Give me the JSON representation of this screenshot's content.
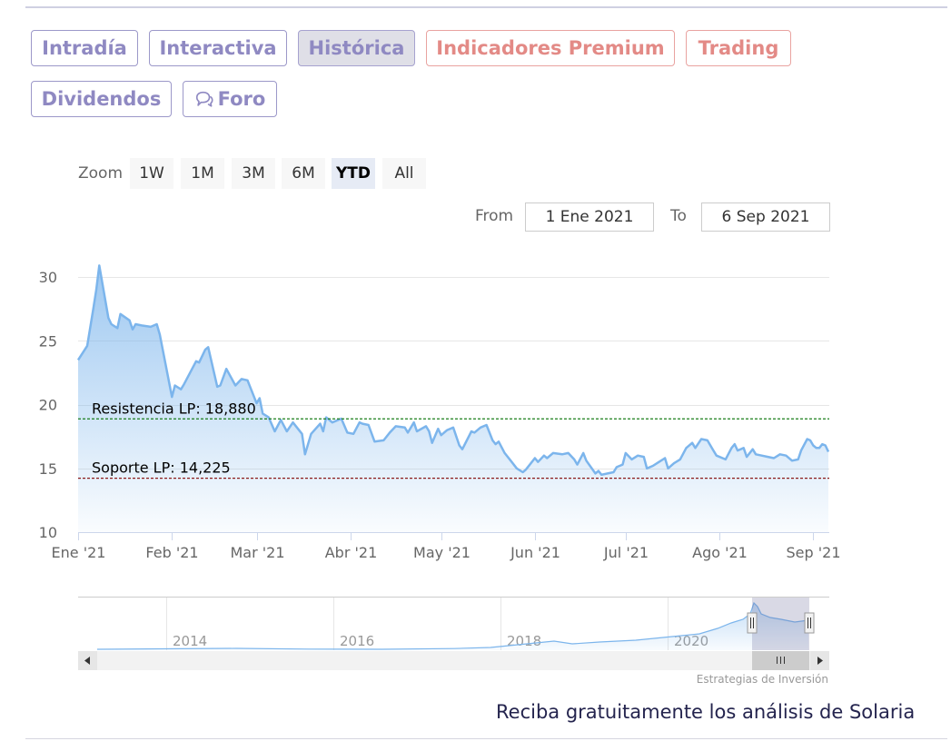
{
  "tabs": [
    {
      "label": "Intradía",
      "style": "normal"
    },
    {
      "label": "Interactiva",
      "style": "normal"
    },
    {
      "label": "Histórica",
      "style": "active"
    },
    {
      "label": "Indicadores Premium",
      "style": "premium"
    },
    {
      "label": "Trading",
      "style": "premium"
    },
    {
      "label": "Dividendos",
      "style": "normal"
    },
    {
      "label": "Foro",
      "style": "normal",
      "icon": "speech-bubbles-icon"
    }
  ],
  "range_selector": {
    "zoom_label": "Zoom",
    "buttons": [
      "1W",
      "1M",
      "3M",
      "6M",
      "YTD",
      "All"
    ],
    "selected": "YTD",
    "from_label": "From",
    "from_value": "1 Ene 2021",
    "to_label": "To",
    "to_value": "6 Sep 2021"
  },
  "navigator": {
    "year_labels": [
      "2014",
      "2016",
      "2018",
      "2020"
    ],
    "scroll_left_icon": "arrow-left-icon",
    "scroll_right_icon": "arrow-right-icon",
    "grip_icon": "grip-icon"
  },
  "credit": "Estrategias de Inversión",
  "cta_text": "Reciba gratuitamente los análisis de Solaria",
  "colors": {
    "tab_text": "#8f89c2",
    "tab_premium": "#e38a86",
    "series_line": "#7cb5ec",
    "resistance": "#1a7d1a",
    "support": "#8b1a1a",
    "cta": "#24244e"
  },
  "chart_data": {
    "type": "area",
    "title": "",
    "xlabel": "",
    "ylabel": "",
    "x_ticks": [
      "Ene '21",
      "Feb '21",
      "Mar '21",
      "Abr '21",
      "May '21",
      "Jun '21",
      "Jul '21",
      "Ago '21",
      "Sep '21"
    ],
    "y_ticks": [
      10,
      15,
      20,
      25,
      30
    ],
    "ylim": [
      10,
      31.5
    ],
    "xlim": [
      "2021-01-01",
      "2021-09-06"
    ],
    "grid": true,
    "series": [
      {
        "values": [
          [
            "2021-01-01",
            23.5
          ],
          [
            "2021-01-04",
            24.6
          ],
          [
            "2021-01-06",
            27.5
          ],
          [
            "2021-01-07",
            29.0
          ],
          [
            "2021-01-08",
            30.9
          ],
          [
            "2021-01-11",
            26.8
          ],
          [
            "2021-01-12",
            26.3
          ],
          [
            "2021-01-14",
            26.0
          ],
          [
            "2021-01-15",
            27.1
          ],
          [
            "2021-01-18",
            26.6
          ],
          [
            "2021-01-19",
            25.9
          ],
          [
            "2021-01-20",
            26.3
          ],
          [
            "2021-01-22",
            26.2
          ],
          [
            "2021-01-25",
            26.1
          ],
          [
            "2021-01-27",
            26.3
          ],
          [
            "2021-01-28",
            25.5
          ],
          [
            "2021-02-01",
            20.6
          ],
          [
            "2021-02-02",
            21.5
          ],
          [
            "2021-02-04",
            21.2
          ],
          [
            "2021-02-05",
            21.6
          ],
          [
            "2021-02-09",
            23.4
          ],
          [
            "2021-02-10",
            23.3
          ],
          [
            "2021-02-12",
            24.3
          ],
          [
            "2021-02-13",
            24.5
          ],
          [
            "2021-02-16",
            21.4
          ],
          [
            "2021-02-17",
            21.5
          ],
          [
            "2021-02-19",
            22.8
          ],
          [
            "2021-02-22",
            21.5
          ],
          [
            "2021-02-24",
            22.0
          ],
          [
            "2021-02-26",
            21.9
          ],
          [
            "2021-03-01",
            20.1
          ],
          [
            "2021-03-02",
            20.5
          ],
          [
            "2021-03-03",
            19.3
          ],
          [
            "2021-03-05",
            19.0
          ],
          [
            "2021-03-07",
            17.9
          ],
          [
            "2021-03-09",
            18.8
          ],
          [
            "2021-03-11",
            17.9
          ],
          [
            "2021-03-13",
            18.6
          ],
          [
            "2021-03-16",
            17.7
          ],
          [
            "2021-03-17",
            16.1
          ],
          [
            "2021-03-19",
            17.7
          ],
          [
            "2021-03-22",
            18.5
          ],
          [
            "2021-03-23",
            17.9
          ],
          [
            "2021-03-24",
            19.0
          ],
          [
            "2021-03-26",
            18.6
          ],
          [
            "2021-03-29",
            18.9
          ],
          [
            "2021-03-31",
            17.8
          ],
          [
            "2021-04-02",
            17.7
          ],
          [
            "2021-04-04",
            18.6
          ],
          [
            "2021-04-05",
            18.5
          ],
          [
            "2021-04-07",
            18.4
          ],
          [
            "2021-04-09",
            17.1
          ],
          [
            "2021-04-12",
            17.2
          ],
          [
            "2021-04-14",
            17.8
          ],
          [
            "2021-04-16",
            18.3
          ],
          [
            "2021-04-19",
            18.2
          ],
          [
            "2021-04-20",
            17.8
          ],
          [
            "2021-04-22",
            18.6
          ],
          [
            "2021-04-23",
            17.9
          ],
          [
            "2021-04-26",
            18.3
          ],
          [
            "2021-04-27",
            17.9
          ],
          [
            "2021-04-28",
            17.0
          ],
          [
            "2021-04-30",
            18.1
          ],
          [
            "2021-05-01",
            17.6
          ],
          [
            "2021-05-03",
            18.0
          ],
          [
            "2021-05-05",
            18.2
          ],
          [
            "2021-05-07",
            16.8
          ],
          [
            "2021-05-08",
            16.5
          ],
          [
            "2021-05-11",
            17.9
          ],
          [
            "2021-05-12",
            17.8
          ],
          [
            "2021-05-14",
            18.2
          ],
          [
            "2021-05-16",
            18.4
          ],
          [
            "2021-05-18",
            17.2
          ],
          [
            "2021-05-19",
            16.9
          ],
          [
            "2021-05-20",
            17.1
          ],
          [
            "2021-05-22",
            16.2
          ],
          [
            "2021-05-24",
            15.6
          ],
          [
            "2021-05-26",
            15.0
          ],
          [
            "2021-05-28",
            14.7
          ],
          [
            "2021-05-29",
            14.9
          ],
          [
            "2021-06-01",
            15.8
          ],
          [
            "2021-06-02",
            15.5
          ],
          [
            "2021-06-04",
            16.0
          ],
          [
            "2021-06-05",
            15.8
          ],
          [
            "2021-06-07",
            16.2
          ],
          [
            "2021-06-10",
            16.1
          ],
          [
            "2021-06-12",
            16.2
          ],
          [
            "2021-06-14",
            15.7
          ],
          [
            "2021-06-15",
            15.3
          ],
          [
            "2021-06-17",
            16.2
          ],
          [
            "2021-06-18",
            15.6
          ],
          [
            "2021-06-21",
            14.6
          ],
          [
            "2021-06-22",
            14.8
          ],
          [
            "2021-06-23",
            14.5
          ],
          [
            "2021-06-25",
            14.6
          ],
          [
            "2021-06-27",
            14.7
          ],
          [
            "2021-06-28",
            15.1
          ],
          [
            "2021-06-30",
            15.3
          ],
          [
            "2021-07-01",
            16.2
          ],
          [
            "2021-07-03",
            15.7
          ],
          [
            "2021-07-05",
            16.0
          ],
          [
            "2021-07-07",
            15.9
          ],
          [
            "2021-07-08",
            15.0
          ],
          [
            "2021-07-10",
            15.2
          ],
          [
            "2021-07-12",
            15.5
          ],
          [
            "2021-07-14",
            15.8
          ],
          [
            "2021-07-15",
            15.0
          ],
          [
            "2021-07-17",
            15.4
          ],
          [
            "2021-07-19",
            15.7
          ],
          [
            "2021-07-21",
            16.6
          ],
          [
            "2021-07-23",
            17.0
          ],
          [
            "2021-07-24",
            16.6
          ],
          [
            "2021-07-26",
            17.3
          ],
          [
            "2021-07-28",
            17.2
          ],
          [
            "2021-07-30",
            16.4
          ],
          [
            "2021-07-31",
            16.0
          ],
          [
            "2021-08-03",
            15.7
          ],
          [
            "2021-08-05",
            16.6
          ],
          [
            "2021-08-06",
            16.9
          ],
          [
            "2021-08-07",
            16.4
          ],
          [
            "2021-08-09",
            16.6
          ],
          [
            "2021-08-10",
            15.9
          ],
          [
            "2021-08-12",
            16.5
          ],
          [
            "2021-08-13",
            16.1
          ],
          [
            "2021-08-15",
            16.0
          ],
          [
            "2021-08-17",
            15.9
          ],
          [
            "2021-08-19",
            15.8
          ],
          [
            "2021-08-21",
            16.1
          ],
          [
            "2021-08-23",
            16.0
          ],
          [
            "2021-08-25",
            15.6
          ],
          [
            "2021-08-27",
            15.7
          ],
          [
            "2021-08-28",
            16.4
          ],
          [
            "2021-08-30",
            17.3
          ],
          [
            "2021-08-31",
            17.2
          ],
          [
            "2021-09-01",
            16.8
          ],
          [
            "2021-09-02",
            16.6
          ],
          [
            "2021-09-03",
            16.6
          ],
          [
            "2021-09-04",
            16.9
          ],
          [
            "2021-09-05",
            16.8
          ],
          [
            "2021-09-06",
            16.3
          ]
        ]
      }
    ],
    "reference_lines": [
      {
        "label": "Resistencia LP: 18,880",
        "value": 18.88,
        "style": "dashed",
        "color": "#1a7d1a"
      },
      {
        "label": "Soporte LP: 14,225",
        "value": 14.225,
        "style": "dashed",
        "color": "#8b1a1a"
      }
    ]
  }
}
